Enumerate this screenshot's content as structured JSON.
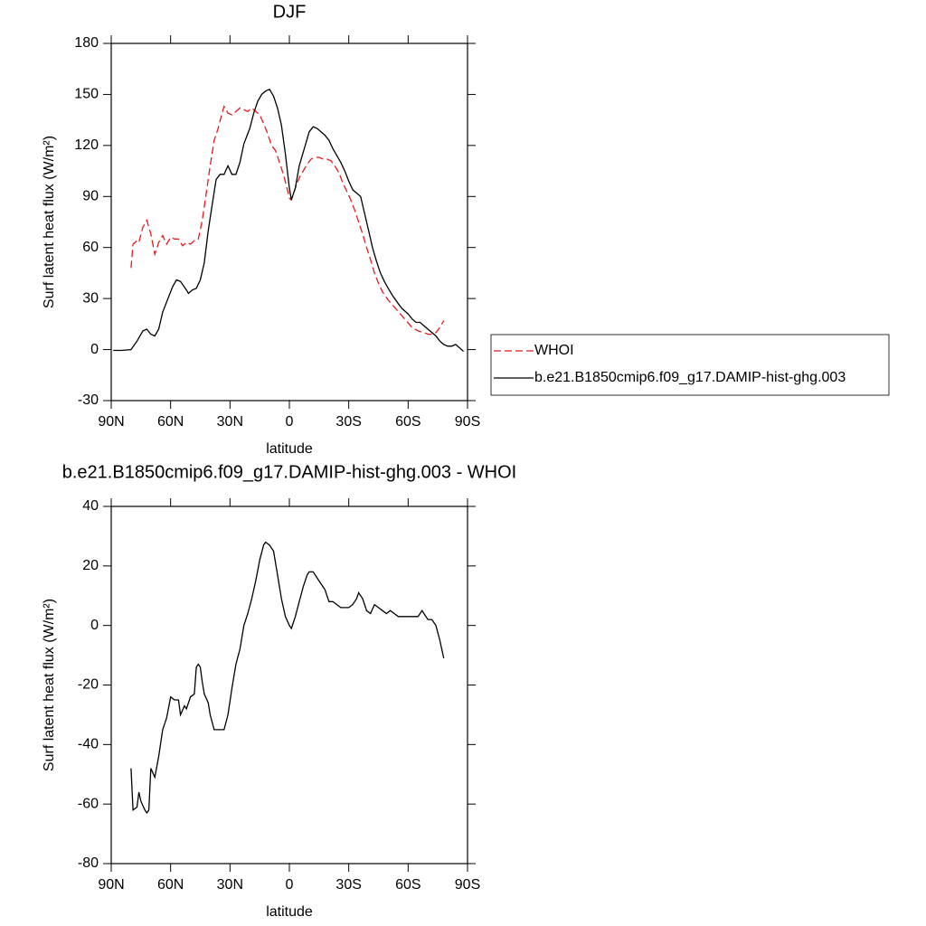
{
  "chart_data": [
    {
      "type": "line",
      "title": "DJF",
      "xlabel": "latitude",
      "ylabel": "Surf latent heat flux (W/m²)",
      "xlim": [
        90,
        -90
      ],
      "ylim": [
        -30,
        180
      ],
      "xticks": [
        {
          "value": 90,
          "label": "90N"
        },
        {
          "value": 60,
          "label": "60N"
        },
        {
          "value": 30,
          "label": "30N"
        },
        0,
        {
          "value": -30,
          "label": "30S"
        },
        {
          "value": -60,
          "label": "60S"
        },
        {
          "value": -90,
          "label": "90S"
        }
      ],
      "yticks": [
        -30,
        0,
        30,
        60,
        90,
        120,
        150,
        180
      ],
      "legend": "outside right",
      "series": [
        {
          "name": "WHOI",
          "color": "#e8191c",
          "line_style": "dashed",
          "x": [
            80,
            79,
            77,
            76,
            74,
            72,
            70,
            68,
            66,
            64,
            62,
            60,
            58,
            56,
            54,
            52,
            50,
            48,
            46,
            44,
            42,
            40,
            38,
            36,
            34,
            33,
            31,
            29,
            27,
            25,
            23,
            21,
            19,
            17,
            15,
            13,
            11,
            9,
            7,
            5,
            3,
            1,
            0,
            -1,
            -3,
            -5,
            -7,
            -9,
            -11,
            -13,
            -15,
            -17,
            -19,
            -21,
            -23,
            -25,
            -27,
            -29,
            -31,
            -33,
            -35,
            -37,
            -39,
            -41,
            -43,
            -45,
            -47,
            -50,
            -53,
            -56,
            -59,
            -62,
            -65,
            -68,
            -70,
            -72,
            -74,
            -76,
            -78
          ],
          "values": [
            48,
            62,
            64,
            63,
            72,
            76,
            68,
            56,
            63,
            67,
            62,
            66,
            65,
            65,
            61,
            63,
            62,
            64,
            65,
            76,
            92,
            108,
            123,
            130,
            139,
            143,
            139,
            138,
            140,
            142,
            141,
            140,
            142,
            140,
            138,
            133,
            127,
            120,
            117,
            110,
            103,
            94,
            89,
            88,
            95,
            101,
            105,
            109,
            112,
            113,
            113,
            112,
            112,
            111,
            108,
            104,
            98,
            93,
            88,
            82,
            75,
            68,
            60,
            53,
            45,
            39,
            34,
            29,
            25,
            21,
            17,
            13,
            11,
            10,
            9,
            9,
            10,
            13,
            17
          ]
        },
        {
          "name": "b.e21.B1850cmip6.f09_g17.DAMIP-hist-ghg.003",
          "color": "#000000",
          "line_style": "solid",
          "x": [
            89,
            85,
            80,
            77,
            74,
            72,
            70,
            68,
            66,
            64,
            62,
            59,
            57,
            55,
            52,
            51,
            49,
            47,
            45,
            43,
            41,
            39,
            37,
            35,
            33,
            31,
            29,
            27,
            25,
            23,
            20,
            18,
            16,
            14,
            12,
            10,
            8,
            6,
            4,
            2,
            0,
            -1,
            -3,
            -5,
            -8,
            -10,
            -12,
            -14,
            -16,
            -18,
            -20,
            -22,
            -24,
            -26,
            -28,
            -30,
            -32,
            -34,
            -36,
            -38,
            -40,
            -42,
            -44,
            -46,
            -48,
            -50,
            -52,
            -55,
            -57,
            -60,
            -62,
            -64,
            -66,
            -68,
            -70,
            -72,
            -74,
            -76,
            -78,
            -80,
            -82,
            -84,
            -86,
            -88
          ],
          "values": [
            -0.5,
            -0.5,
            0,
            5,
            11,
            12,
            9,
            8,
            12,
            22,
            28,
            37,
            41,
            40,
            35,
            33,
            35,
            36,
            41,
            51,
            70,
            85,
            100,
            103,
            103,
            108,
            103,
            103,
            110,
            121,
            130,
            139,
            146,
            150,
            152,
            153,
            149,
            142,
            132,
            115,
            95,
            88,
            95,
            108,
            120,
            128,
            131,
            130,
            128,
            126,
            123,
            118,
            114,
            110,
            105,
            99,
            94,
            92,
            90,
            80,
            70,
            60,
            52,
            45,
            40,
            36,
            32,
            27,
            24,
            21,
            18,
            16,
            16,
            14,
            12,
            10,
            8,
            5,
            3,
            2,
            2,
            3,
            1,
            -1
          ]
        }
      ]
    },
    {
      "type": "line",
      "title": "b.e21.B1850cmip6.f09_g17.DAMIP-hist-ghg.003 - WHOI",
      "xlabel": "latitude",
      "ylabel": "Surf latent heat flux (W/m²)",
      "xlim": [
        90,
        -90
      ],
      "ylim": [
        -80,
        40
      ],
      "xticks": [
        {
          "value": 90,
          "label": "90N"
        },
        {
          "value": 60,
          "label": "60N"
        },
        {
          "value": 30,
          "label": "30N"
        },
        0,
        {
          "value": -30,
          "label": "30S"
        },
        {
          "value": -60,
          "label": "60S"
        },
        {
          "value": -90,
          "label": "90S"
        }
      ],
      "yticks": [
        -80,
        -60,
        -40,
        -20,
        0,
        20,
        40
      ],
      "color": "#000000",
      "x": [
        80,
        79,
        77,
        76,
        75,
        73,
        72,
        71,
        70,
        68,
        66,
        64,
        62,
        60,
        58,
        56,
        55,
        53,
        52,
        50,
        48,
        47,
        46,
        45,
        44,
        43,
        41,
        40,
        38,
        36,
        34,
        33,
        31,
        29,
        27,
        25,
        23,
        21,
        19,
        17,
        15,
        13,
        12,
        10,
        8,
        6,
        4,
        2,
        0,
        -1,
        -3,
        -5,
        -7,
        -9,
        -10,
        -12,
        -14,
        -16,
        -18,
        -20,
        -22,
        -24,
        -26,
        -28,
        -30,
        -32,
        -34,
        -35,
        -37,
        -39,
        -41,
        -43,
        -45,
        -47,
        -49,
        -51,
        -53,
        -55,
        -57,
        -60,
        -63,
        -65,
        -67,
        -68,
        -70,
        -72,
        -74,
        -76,
        -78
      ],
      "values": [
        -48,
        -62,
        -61,
        -56,
        -59,
        -62,
        -63,
        -62,
        -48,
        -51,
        -44,
        -35,
        -31,
        -24,
        -25,
        -25,
        -30,
        -27,
        -28,
        -24,
        -23,
        -14,
        -13,
        -14,
        -19,
        -23,
        -26,
        -30,
        -35,
        -35,
        -35,
        -35,
        -30,
        -21,
        -13,
        -8,
        0,
        4,
        9,
        15,
        22,
        27,
        28,
        27,
        25,
        17,
        9,
        3,
        0,
        -1,
        3,
        8,
        13,
        17,
        18,
        18,
        16,
        14,
        12,
        8,
        8,
        7,
        6,
        6,
        6,
        7,
        9,
        11,
        9,
        5,
        4,
        7,
        6,
        5,
        4,
        5,
        4,
        3,
        3,
        3,
        3,
        3,
        5,
        4,
        2,
        2,
        0,
        -5,
        -11
      ]
    }
  ]
}
